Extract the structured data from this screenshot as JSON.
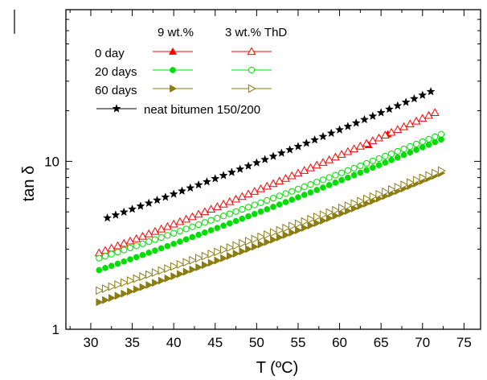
{
  "chart_data": {
    "type": "scatter",
    "xlabel": "T (ºC)",
    "ylabel": "tan δ",
    "xlim": [
      27,
      77
    ],
    "ylim": [
      1,
      80
    ],
    "yscale": "log",
    "x_ticks": [
      "30",
      "35",
      "40",
      "45",
      "50",
      "55",
      "60",
      "65",
      "70",
      "75"
    ],
    "y_ticks": [
      "1",
      "10"
    ],
    "legend_placement": "top-left",
    "legend": {
      "header_9": "9 wt.%",
      "header_3": "3 wt.% ThD",
      "rows": [
        "0 day",
        "20 days",
        "60 days"
      ],
      "neat": "neat bitumen 150/200"
    },
    "colors": {
      "red": "#ff0000",
      "green": "#00dd00",
      "olive": "#8b7d10",
      "black": "#000000"
    },
    "series": [
      {
        "group": "0 day",
        "concentration": "9 wt.%",
        "marker": "triangle-up",
        "filled": true,
        "color": "#ff0000",
        "x": [
          63.5,
          65.8
        ],
        "y": [
          12.5,
          14.5
        ]
      },
      {
        "group": "0 day",
        "concentration": "3 wt.% ThD",
        "marker": "triangle-up",
        "filled": false,
        "color": "#ff0000",
        "x_start": 31,
        "x_step": 0.75,
        "x_end": 71.5,
        "y_start": 2.85,
        "y_end": 19.5
      },
      {
        "group": "20 days",
        "concentration": "9 wt.%",
        "marker": "circle",
        "filled": true,
        "color": "#00dd00",
        "x_start": 31,
        "x_step": 0.75,
        "x_end": 72.5,
        "y_start": 2.25,
        "y_end": 13.5
      },
      {
        "group": "20 days",
        "concentration": "3 wt.% ThD",
        "marker": "circle",
        "filled": false,
        "color": "#00dd00",
        "x_start": 31,
        "x_step": 0.75,
        "x_end": 72.5,
        "y_start": 2.65,
        "y_end": 14.5
      },
      {
        "group": "60 days",
        "concentration": "9 wt.%",
        "marker": "triangle-right",
        "filled": true,
        "color": "#8b7d10",
        "x_start": 31,
        "x_step": 0.75,
        "x_end": 72.5,
        "y_start": 1.45,
        "y_end": 8.5
      },
      {
        "group": "60 days",
        "concentration": "3 wt.% ThD",
        "marker": "triangle-right",
        "filled": false,
        "color": "#8b7d10",
        "x_start": 31,
        "x_step": 0.75,
        "x_end": 72.5,
        "y_start": 1.7,
        "y_end": 8.8
      },
      {
        "group": "neat bitumen 150/200",
        "marker": "star",
        "filled": true,
        "color": "#000000",
        "x_start": 32,
        "x_step": 1.0,
        "x_end": 71,
        "y_start": 4.6,
        "y_end": 26
      }
    ]
  }
}
